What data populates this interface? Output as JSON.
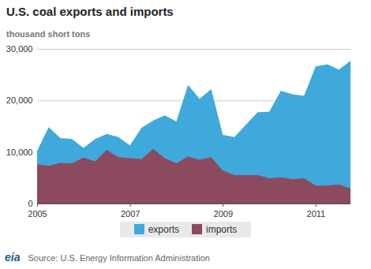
{
  "chart_data": {
    "type": "area",
    "title": "U.S. coal exports and imports",
    "subtitle": "thousand short tons",
    "source": "Source: U.S. Energy Information Administration",
    "logo": "eia",
    "x": [
      2005,
      2005.25,
      2005.5,
      2005.75,
      2006,
      2006.25,
      2006.5,
      2006.75,
      2007,
      2007.25,
      2007.5,
      2007.75,
      2008,
      2008.25,
      2008.5,
      2008.75,
      2009,
      2009.25,
      2009.5,
      2009.75,
      2010,
      2010.25,
      2010.5,
      2010.75,
      2011,
      2011.25,
      2011.5,
      2011.75
    ],
    "series": [
      {
        "name": "exports",
        "color": "#3fa9db",
        "values": [
          10200,
          14800,
          12700,
          12500,
          10800,
          12500,
          13500,
          12900,
          11300,
          14700,
          16100,
          17100,
          15900,
          23000,
          20300,
          22200,
          13300,
          12900,
          15300,
          17700,
          17800,
          21900,
          21200,
          20900,
          26600,
          27000,
          26000,
          27700
        ]
      },
      {
        "name": "imports",
        "color": "#8b4a5e",
        "values": [
          7600,
          7300,
          7900,
          7800,
          8900,
          8200,
          10400,
          9000,
          8800,
          8600,
          10600,
          8800,
          7800,
          9100,
          8500,
          9000,
          6400,
          5500,
          5500,
          5500,
          4900,
          5100,
          4700,
          4900,
          3500,
          3500,
          3700,
          2900
        ]
      }
    ],
    "xlim": [
      2005,
      2011.75
    ],
    "xticks": [
      2005,
      2007,
      2009,
      2011
    ],
    "ylim": [
      0,
      30000
    ],
    "yticks": [
      0,
      {
        "value": 10000,
        "label": "10,000"
      },
      {
        "value": 20000,
        "label": "20,000"
      },
      {
        "value": 30000,
        "label": "30,000"
      }
    ],
    "grid": true,
    "stacked": false,
    "legend": "bottom"
  }
}
